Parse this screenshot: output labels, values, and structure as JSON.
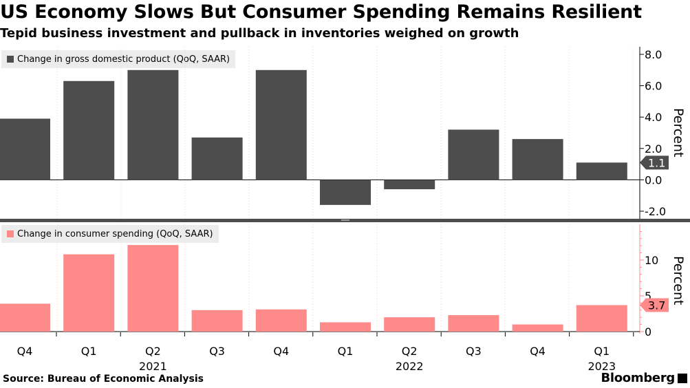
{
  "title": "US Economy Slows But Consumer Spending Remains Resilient",
  "subtitle": "Tepid business investment and pullback in inventories weighed on growth",
  "source": "Source: Bureau of Economic Analysis",
  "brand": "Bloomberg",
  "chart_data": [
    {
      "type": "bar",
      "legend": "Change in gross domestic product (QoQ, SAAR)",
      "color": "#4d4d4d",
      "ylabel": "Percent",
      "ylim": [
        -2.0,
        8.0
      ],
      "ticks": [
        "8.0",
        "6.0",
        "4.0",
        "2.0",
        "0.0",
        "-2.0"
      ],
      "tick_values": [
        8,
        6,
        4,
        2,
        0,
        -2
      ],
      "last_value_label": "1.1",
      "categories": [
        "Q4 2020",
        "Q1 2021",
        "Q2 2021",
        "Q3 2021",
        "Q4 2021",
        "Q1 2022",
        "Q2 2022",
        "Q3 2022",
        "Q4 2022",
        "Q1 2023"
      ],
      "values": [
        3.9,
        6.3,
        7.0,
        2.7,
        7.0,
        -1.6,
        -0.6,
        3.2,
        2.6,
        1.1
      ]
    },
    {
      "type": "bar",
      "legend": "Change in consumer spending (QoQ, SAAR)",
      "color": "#ff8a8a",
      "ylabel": "Percent",
      "ylim": [
        0,
        15
      ],
      "ticks": [
        "10",
        "5",
        "0"
      ],
      "tick_values": [
        10,
        5,
        0
      ],
      "last_value_label": "3.7",
      "categories": [
        "Q4 2020",
        "Q1 2021",
        "Q2 2021",
        "Q3 2021",
        "Q4 2021",
        "Q1 2022",
        "Q2 2022",
        "Q3 2022",
        "Q4 2022",
        "Q1 2023"
      ],
      "values": [
        3.9,
        10.8,
        12.1,
        3.0,
        3.1,
        1.3,
        2.0,
        2.3,
        1.0,
        3.7
      ]
    }
  ],
  "x_axis": {
    "quarters": [
      "Q4",
      "Q1",
      "Q2",
      "Q3",
      "Q4",
      "Q1",
      "Q2",
      "Q3",
      "Q4",
      "Q1"
    ],
    "years": [
      "2021",
      "2022",
      "2023"
    ]
  }
}
